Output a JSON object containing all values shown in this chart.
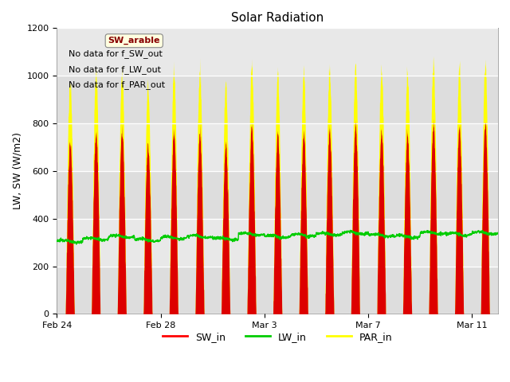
{
  "title": "Solar Radiation",
  "ylabel": "LW, SW (W/m2)",
  "ylim": [
    0,
    1200
  ],
  "yticks": [
    0,
    200,
    400,
    600,
    800,
    1000,
    1200
  ],
  "annotations": [
    "No data for f_SW_out",
    "No data for f_LW_out",
    "No data for f_PAR_out"
  ],
  "legend_label": "SW_arable",
  "legend_entries": [
    "SW_in",
    "LW_in",
    "PAR_in"
  ],
  "legend_colors": [
    "#ff0000",
    "#00cc00",
    "#ffff00"
  ],
  "plot_bg_color": "#e8e8e8",
  "sw_color": "#dd0000",
  "lw_color": "#00cc00",
  "par_color": "#ffff00",
  "n_days": 17,
  "points_per_day": 144,
  "xtick_positions": [
    0,
    4,
    8,
    12,
    16
  ],
  "xtick_labels": [
    "Feb 24",
    "Feb 28",
    "Mar 3",
    "Mar 7",
    "Mar 11"
  ],
  "sw_peaks": [
    720,
    760,
    770,
    710,
    755,
    765,
    705,
    790,
    755,
    760,
    775,
    795,
    765,
    755,
    795,
    785,
    800
  ],
  "par_peaks": [
    980,
    1020,
    1010,
    960,
    1010,
    1020,
    960,
    1040,
    1010,
    1020,
    1030,
    1050,
    1020,
    1010,
    1050,
    1040,
    1050
  ],
  "lw_bases": [
    305,
    315,
    325,
    310,
    320,
    325,
    315,
    335,
    325,
    330,
    335,
    340,
    330,
    325,
    340,
    335,
    340
  ]
}
